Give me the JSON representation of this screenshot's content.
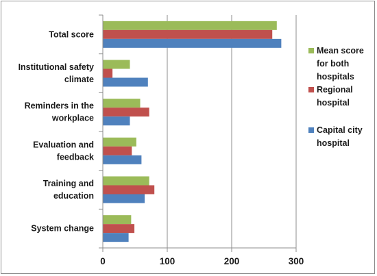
{
  "chart_data": {
    "type": "bar",
    "orientation": "horizontal",
    "categories": [
      [
        "Total score"
      ],
      [
        "Institutional safety",
        "climate"
      ],
      [
        "Reminders in the",
        "workplace"
      ],
      [
        "Evaluation and",
        "feedback"
      ],
      [
        "Training and",
        "education"
      ],
      [
        "System change"
      ]
    ],
    "series": [
      {
        "name": [
          "Mean score",
          "for both",
          "hospitals"
        ],
        "color": "#9BBB59",
        "values": [
          270,
          42,
          58,
          52,
          72,
          44
        ]
      },
      {
        "name": [
          "Regional",
          "hospital"
        ],
        "color": "#C0504D",
        "values": [
          263,
          15,
          72,
          45,
          80,
          49
        ]
      },
      {
        "name": [
          "Capital city",
          "hospital"
        ],
        "color": "#4F81BD",
        "values": [
          277,
          70,
          42,
          60,
          65,
          40
        ]
      }
    ],
    "x_ticks": [
      "0",
      "100",
      "200",
      "300"
    ],
    "xlim": [
      0,
      300
    ],
    "grid": "vertical",
    "legend_position": "right"
  }
}
